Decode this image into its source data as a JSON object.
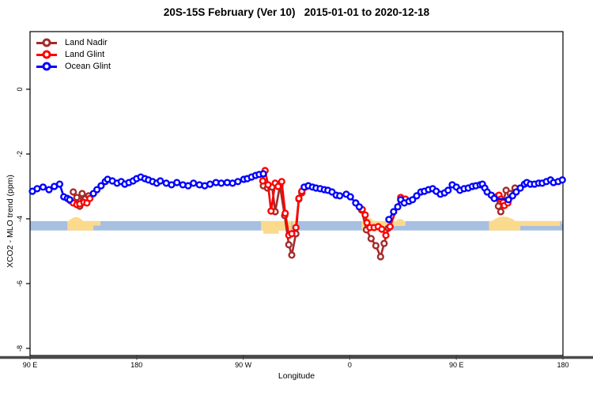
{
  "chart_data": {
    "type": "line",
    "title": "20S-15S February (Ver 10)   2015-01-01 to 2020-12-18",
    "xlabel": "Longitude",
    "ylabel": "XCO2 - MLO trend (ppm)",
    "axis_note": "x axis is wrapped longitude, degrees eastward from 90E",
    "xlim": [
      0,
      450
    ],
    "ylim": [
      -8.22,
      1.78
    ],
    "x_ticks": [
      {
        "pos": 0,
        "label": "90 E"
      },
      {
        "pos": 90,
        "label": "180"
      },
      {
        "pos": 180,
        "label": "90 W"
      },
      {
        "pos": 270,
        "label": "0"
      },
      {
        "pos": 360,
        "label": "90 E"
      },
      {
        "pos": 450,
        "label": "180"
      }
    ],
    "y_ticks": [
      {
        "v": 0,
        "label": "0"
      },
      {
        "v": -2,
        "label": "-2"
      },
      {
        "v": -4,
        "label": "-4"
      },
      {
        "v": -6,
        "label": "-6"
      },
      {
        "v": -8,
        "label": "-8"
      }
    ],
    "band": {
      "color": "#A7BFE0",
      "from": 0,
      "to": 450,
      "top": -4.07,
      "bottom": -4.36
    },
    "land_color": "#FBDA8C",
    "land_patches": [
      {
        "from": 31.5,
        "to": 53.5,
        "top": -4.07,
        "bottom": -4.36,
        "bump": {
          "from": 32.5,
          "to": 45,
          "apex": -3.95
        }
      },
      {
        "from": 53.5,
        "to": 59.5,
        "top": -4.07,
        "bottom": -4.21
      },
      {
        "from": 195,
        "to": 220.5,
        "top": -4.07,
        "bottom": -4.36,
        "under": {
          "from": 197,
          "to": 210,
          "bottom": -4.46
        }
      },
      {
        "from": 221.5,
        "to": 226.5,
        "top": -4.07,
        "bottom": -4.2
      },
      {
        "from": 280,
        "to": 302,
        "top": -4.07,
        "bottom": -4.36,
        "bump": {
          "from": 281.5,
          "to": 290,
          "apex": -3.97
        }
      },
      {
        "from": 302,
        "to": 317,
        "top": -4.07,
        "bottom": -4.22,
        "bump": {
          "from": 309,
          "to": 316,
          "apex": -4.0
        }
      },
      {
        "from": 387.5,
        "to": 414,
        "top": -4.07,
        "bottom": -4.36,
        "bump": {
          "from": 390,
          "to": 410,
          "apex": -3.93
        }
      },
      {
        "from": 414,
        "to": 447.5,
        "top": -4.07,
        "bottom": -4.22
      },
      {
        "from": 448.5,
        "to": 450,
        "top": -4.07,
        "bottom": -4.15
      }
    ],
    "axis_line_color": "#4a4a4a",
    "series": [
      {
        "name": "Land Nadir",
        "color": "#A52A2A",
        "points": [
          [
            36.5,
            -3.17
          ],
          [
            39.5,
            -3.34
          ],
          [
            42,
            -3.61
          ],
          [
            44,
            -3.22
          ],
          [
            46.5,
            -3.39
          ],
          [
            49.5,
            -3.29
          ],
          [
            197,
            -2.98
          ],
          [
            200.5,
            -3.05
          ],
          [
            204.5,
            -3.02
          ],
          [
            207,
            -3.78
          ],
          [
            211,
            -2.98
          ],
          [
            215,
            -3.9
          ],
          [
            218.5,
            -4.8
          ],
          [
            221,
            -5.12
          ],
          [
            224.5,
            -4.46
          ],
          [
            227,
            -3.39
          ],
          [
            229.5,
            -3.2
          ],
          [
            280,
            -3.73
          ],
          [
            284,
            -4.34
          ],
          [
            288,
            -4.61
          ],
          [
            292,
            -4.83
          ],
          [
            296,
            -5.17
          ],
          [
            299,
            -4.76
          ],
          [
            302.5,
            -4.29
          ],
          [
            394,
            -3.32
          ],
          [
            395.5,
            -3.61
          ],
          [
            397.5,
            -3.78
          ],
          [
            402,
            -3.12
          ],
          [
            405.5,
            -3.22
          ],
          [
            409.5,
            -3.05
          ]
        ]
      },
      {
        "name": "Land Glint",
        "color": "#FF0000",
        "points": [
          [
            34,
            -3.44
          ],
          [
            36.5,
            -3.51
          ],
          [
            39.5,
            -3.56
          ],
          [
            42,
            -3.54
          ],
          [
            45.5,
            -3.49
          ],
          [
            48,
            -3.51
          ],
          [
            50.5,
            -3.37
          ],
          [
            196.5,
            -2.83
          ],
          [
            198.5,
            -2.51
          ],
          [
            201,
            -2.95
          ],
          [
            203.5,
            -3.76
          ],
          [
            207,
            -2.9
          ],
          [
            209.5,
            -3
          ],
          [
            212.5,
            -2.85
          ],
          [
            215.5,
            -3.83
          ],
          [
            218.5,
            -4.51
          ],
          [
            221,
            -4.46
          ],
          [
            224.5,
            -4.27
          ],
          [
            227,
            -3.37
          ],
          [
            229.5,
            -3.15
          ],
          [
            232.5,
            -3.02
          ],
          [
            280.5,
            -3.71
          ],
          [
            283,
            -3.88
          ],
          [
            284.5,
            -4.12
          ],
          [
            287,
            -4.27
          ],
          [
            290.5,
            -4.27
          ],
          [
            294,
            -4.24
          ],
          [
            297,
            -4.32
          ],
          [
            300.5,
            -4.51
          ],
          [
            304,
            -4.24
          ],
          [
            313,
            -3.34
          ],
          [
            317,
            -3.39
          ],
          [
            396,
            -3.27
          ],
          [
            397.5,
            -3.39
          ],
          [
            399.5,
            -3.49
          ],
          [
            400.5,
            -3.59
          ],
          [
            403.5,
            -3.51
          ]
        ]
      },
      {
        "name": "Ocean Glint",
        "color": "#0000FF",
        "points": [
          [
            2,
            -3.15
          ],
          [
            6,
            -3.07
          ],
          [
            11,
            -3.02
          ],
          [
            16,
            -3.1
          ],
          [
            20.5,
            -3
          ],
          [
            25,
            -2.93
          ],
          [
            28.5,
            -3.32
          ],
          [
            31.5,
            -3.37
          ],
          [
            33.5,
            -3.41
          ],
          [
            53.5,
            -3.22
          ],
          [
            56.5,
            -3.1
          ],
          [
            60,
            -2.98
          ],
          [
            63.5,
            -2.85
          ],
          [
            65.5,
            -2.78
          ],
          [
            69.5,
            -2.83
          ],
          [
            73.5,
            -2.9
          ],
          [
            77,
            -2.85
          ],
          [
            80,
            -2.93
          ],
          [
            83.5,
            -2.88
          ],
          [
            87,
            -2.83
          ],
          [
            90,
            -2.76
          ],
          [
            93.5,
            -2.71
          ],
          [
            97,
            -2.76
          ],
          [
            100,
            -2.8
          ],
          [
            103.5,
            -2.85
          ],
          [
            107,
            -2.9
          ],
          [
            110,
            -2.83
          ],
          [
            115,
            -2.9
          ],
          [
            119.5,
            -2.95
          ],
          [
            124,
            -2.88
          ],
          [
            129,
            -2.95
          ],
          [
            133.5,
            -2.98
          ],
          [
            138,
            -2.9
          ],
          [
            143,
            -2.95
          ],
          [
            147.5,
            -2.98
          ],
          [
            152,
            -2.93
          ],
          [
            157,
            -2.88
          ],
          [
            161.5,
            -2.9
          ],
          [
            166.5,
            -2.88
          ],
          [
            171,
            -2.9
          ],
          [
            175.5,
            -2.85
          ],
          [
            180.5,
            -2.78
          ],
          [
            183.5,
            -2.76
          ],
          [
            187,
            -2.71
          ],
          [
            190.5,
            -2.66
          ],
          [
            193.5,
            -2.63
          ],
          [
            197,
            -2.61
          ],
          [
            231.5,
            -3.02
          ],
          [
            235,
            -2.98
          ],
          [
            238.5,
            -3.02
          ],
          [
            241.5,
            -3.05
          ],
          [
            245,
            -3.07
          ],
          [
            248.5,
            -3.1
          ],
          [
            251.5,
            -3.12
          ],
          [
            255,
            -3.17
          ],
          [
            258.5,
            -3.27
          ],
          [
            261.5,
            -3.29
          ],
          [
            267,
            -3.24
          ],
          [
            270.5,
            -3.32
          ],
          [
            275,
            -3.51
          ],
          [
            278,
            -3.63
          ],
          [
            303,
            -4.02
          ],
          [
            307,
            -3.78
          ],
          [
            310.5,
            -3.63
          ],
          [
            313,
            -3.41
          ],
          [
            316,
            -3.51
          ],
          [
            320,
            -3.46
          ],
          [
            323,
            -3.41
          ],
          [
            326.5,
            -3.29
          ],
          [
            330,
            -3.17
          ],
          [
            333,
            -3.15
          ],
          [
            336.5,
            -3.1
          ],
          [
            340,
            -3.07
          ],
          [
            343,
            -3.15
          ],
          [
            346.5,
            -3.24
          ],
          [
            350,
            -3.2
          ],
          [
            353,
            -3.12
          ],
          [
            356.5,
            -2.95
          ],
          [
            360,
            -3.02
          ],
          [
            363,
            -3.12
          ],
          [
            366.5,
            -3.07
          ],
          [
            370,
            -3.05
          ],
          [
            373.5,
            -3
          ],
          [
            376.5,
            -2.98
          ],
          [
            380,
            -2.95
          ],
          [
            382,
            -2.93
          ],
          [
            384,
            -3.05
          ],
          [
            386,
            -3.17
          ],
          [
            389.5,
            -3.27
          ],
          [
            392,
            -3.37
          ],
          [
            404,
            -3.41
          ],
          [
            407.5,
            -3.29
          ],
          [
            410.5,
            -3.17
          ],
          [
            414,
            -3.05
          ],
          [
            417.5,
            -2.93
          ],
          [
            419.5,
            -2.88
          ],
          [
            422.5,
            -2.93
          ],
          [
            426,
            -2.93
          ],
          [
            429.5,
            -2.9
          ],
          [
            432.5,
            -2.9
          ],
          [
            436,
            -2.85
          ],
          [
            439.5,
            -2.8
          ],
          [
            442,
            -2.88
          ],
          [
            446,
            -2.85
          ],
          [
            449.5,
            -2.8
          ]
        ]
      }
    ]
  }
}
